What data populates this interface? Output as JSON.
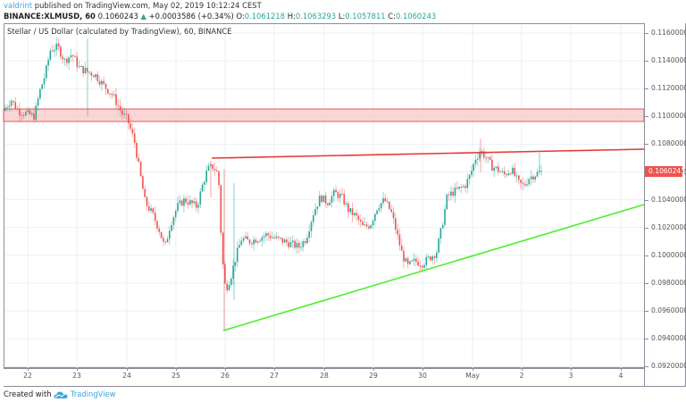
{
  "header": {
    "author": "valdrint",
    "published_text": "published on TradingView.com, May 02, 2019 10:12:24 CEST",
    "symbol": "BINANCE:XLMUSD, 60",
    "last": "0.1060243",
    "change_icon": "triangle-up-icon",
    "change": "+0.0003586 (+0.34%)",
    "o_label": "O:",
    "o": "0.1061218",
    "h_label": "H:",
    "h": "0.1063293",
    "l_label": "L:",
    "l": "0.1057811",
    "c_label": "C:",
    "c": "0.1060243"
  },
  "chart_title": "Stellar / US Dollar (calculated by TradingView), 60, BINANCE",
  "price_tag": "0.1060243",
  "footer": {
    "created_with": "Created with",
    "brand": "TradingView",
    "logo_icon": "tradingview-cloud-icon"
  },
  "colors": {
    "up": "#26a69a",
    "down": "#ef5350",
    "resistance_line": "#e53935",
    "support_line": "#4cef2c",
    "zone_fill": "#f8c8c8",
    "accent": "#3ba6d6"
  },
  "chart_data": {
    "type": "candlestick",
    "title": "Stellar / US Dollar (calculated by TradingView), 60, BINANCE",
    "xlabel": "",
    "ylabel": "",
    "x_ticks": [
      "22",
      "23",
      "24",
      "25",
      "26",
      "27",
      "28",
      "29",
      "30",
      "May",
      "2",
      "3",
      "4"
    ],
    "y_ticks": [
      "0.1160000",
      "0.1140000",
      "0.1120000",
      "0.1100000",
      "0.1080000",
      "0.1060000",
      "0.1040000",
      "0.1020000",
      "0.1000000",
      "0.0980000",
      "0.0960000",
      "0.0940000",
      "0.0920000"
    ],
    "ylim": [
      0.092,
      0.1163
    ],
    "grid": true,
    "last_price": 0.1060243,
    "approx_path": [
      {
        "date": "21 late",
        "price": 0.1104
      },
      {
        "date": "22",
        "price": 0.11
      },
      {
        "date": "22 mid",
        "price": 0.113
      },
      {
        "date": "22 late",
        "price": 0.115
      },
      {
        "date": "23",
        "price": 0.1135
      },
      {
        "date": "23 mid",
        "price": 0.112
      },
      {
        "date": "24",
        "price": 0.1098
      },
      {
        "date": "24 mid",
        "price": 0.104
      },
      {
        "date": "24 late",
        "price": 0.1005
      },
      {
        "date": "25",
        "price": 0.104
      },
      {
        "date": "25 mid",
        "price": 0.103
      },
      {
        "date": "25 late",
        "price": 0.1066
      },
      {
        "date": "26",
        "price": 0.0975
      },
      {
        "date": "26 mid",
        "price": 0.101
      },
      {
        "date": "27",
        "price": 0.1012
      },
      {
        "date": "27 late",
        "price": 0.101
      },
      {
        "date": "28",
        "price": 0.1042
      },
      {
        "date": "28 late",
        "price": 0.1046
      },
      {
        "date": "29",
        "price": 0.1025
      },
      {
        "date": "29 mid",
        "price": 0.104
      },
      {
        "date": "29 late",
        "price": 0.099
      },
      {
        "date": "30",
        "price": 0.0995
      },
      {
        "date": "30 mid",
        "price": 0.104
      },
      {
        "date": "May",
        "price": 0.1055
      },
      {
        "date": "May mid",
        "price": 0.1072
      },
      {
        "date": "1 late",
        "price": 0.1058
      },
      {
        "date": "2",
        "price": 0.1052
      },
      {
        "date": "2 mid",
        "price": 0.106
      }
    ],
    "annotations": [
      {
        "type": "horizontal_zone",
        "label": "resistance zone",
        "from": 0.1096,
        "to": 0.1104,
        "color": "#f8c8c8"
      },
      {
        "type": "trend_line",
        "label": "resistance line",
        "start": {
          "date": "25 late",
          "price": 0.1069
        },
        "end": {
          "date": "4+",
          "price": 0.1075
        },
        "color": "#e53935"
      },
      {
        "type": "trend_line",
        "label": "support line",
        "start": {
          "date": "26",
          "price": 0.0945
        },
        "end": {
          "date": "4+",
          "price": 0.1036
        },
        "color": "#4cef2c"
      }
    ]
  }
}
